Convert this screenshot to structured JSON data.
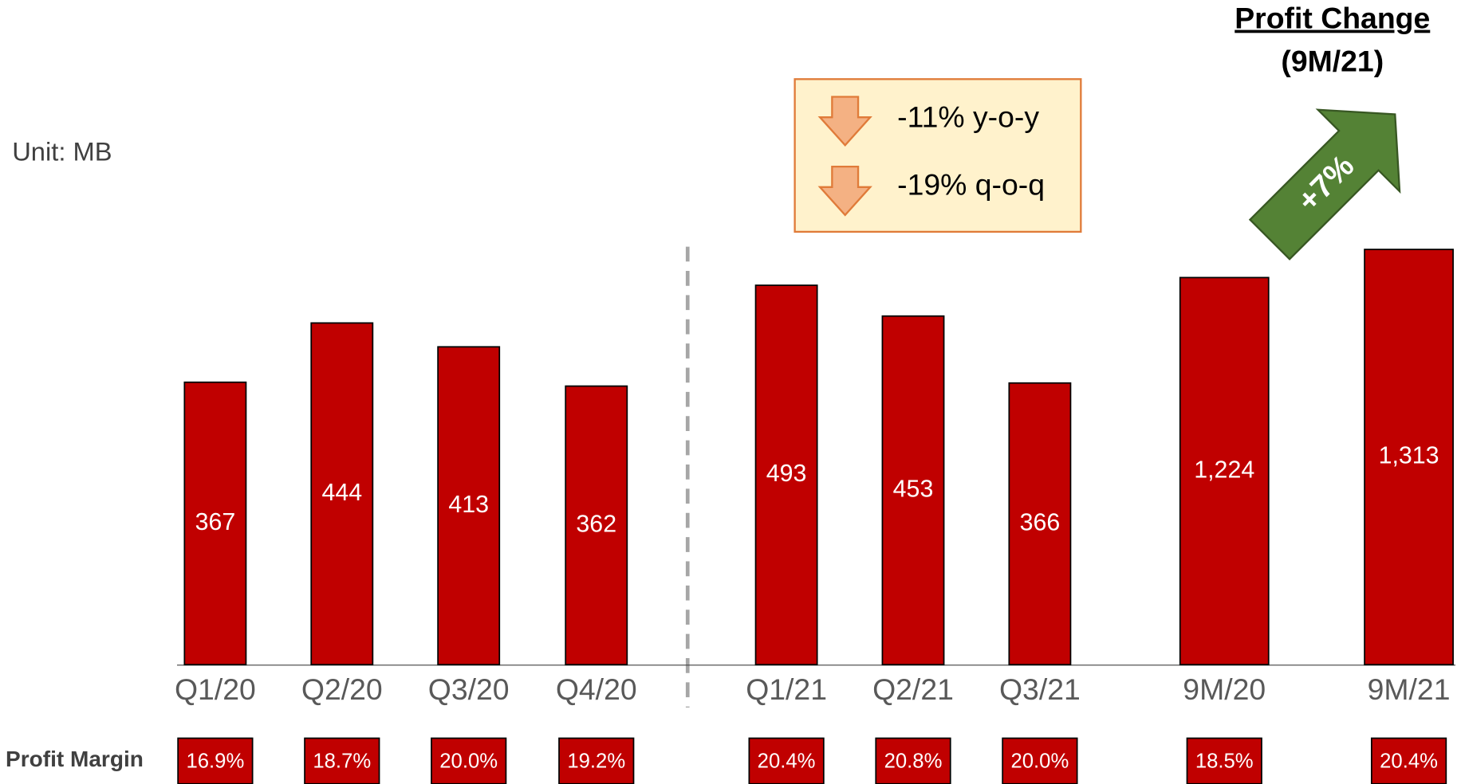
{
  "chart_data": [
    {
      "type": "bar",
      "unit": "Unit: MB",
      "categories": [
        "Q1/20",
        "Q2/20",
        "Q3/20",
        "Q4/20",
        "Q1/21",
        "Q2/21",
        "Q3/21"
      ],
      "values": [
        367,
        444,
        413,
        362,
        493,
        453,
        366
      ],
      "color": "#c00000",
      "ylim": [
        0,
        600
      ],
      "annotations": [
        "-11% y-o-y",
        "-19% q-o-q"
      ],
      "margin_label": "Profit Margin",
      "margins": [
        16.9,
        18.7,
        20.0,
        19.2,
        20.4,
        20.8,
        20.0
      ],
      "margin_labels": [
        "16.9%",
        "18.7%",
        "20.0%",
        "19.2%",
        "20.4%",
        "20.8%",
        "20.0%"
      ]
    },
    {
      "type": "bar",
      "title": "Profit Change",
      "subtitle": "(9M/21)",
      "annotation": "+7%",
      "categories": [
        "9M/20",
        "9M/21"
      ],
      "values": [
        1224,
        1313
      ],
      "value_labels": [
        "1,224",
        "1,313"
      ],
      "color": "#c00000",
      "ylim": [
        0,
        1460
      ],
      "margins": [
        18.5,
        20.4
      ],
      "margin_labels": [
        "18.5%",
        "20.4%"
      ]
    }
  ]
}
